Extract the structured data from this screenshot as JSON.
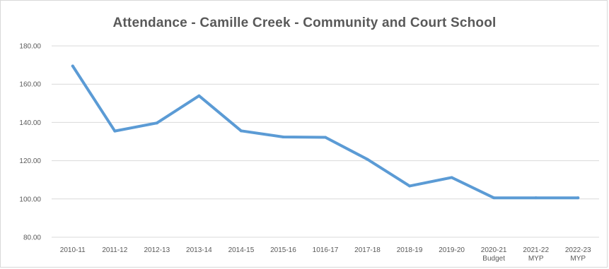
{
  "chart_data": {
    "type": "line",
    "title": "Attendance - Camille Creek - Community and Court School",
    "xlabel": "",
    "ylabel": "",
    "categories": [
      [
        "2010-11"
      ],
      [
        "2011-12"
      ],
      [
        "2012-13"
      ],
      [
        "2013-14"
      ],
      [
        "2014-15"
      ],
      [
        "2015-16"
      ],
      [
        "1016-17"
      ],
      [
        "2017-18"
      ],
      [
        "2018-19"
      ],
      [
        "2019-20"
      ],
      [
        "2020-21",
        "Budget"
      ],
      [
        "2021-22",
        "MYP"
      ],
      [
        "2022-23",
        "MYP"
      ]
    ],
    "series": [
      {
        "values": [
          169.5,
          135.5,
          139.7,
          153.9,
          135.6,
          132.4,
          132.2,
          120.7,
          106.8,
          111.2,
          100.6,
          100.6,
          100.6
        ],
        "color": "#5b9bd5"
      }
    ],
    "ylim": [
      80,
      180
    ],
    "y_ticks": [
      80,
      100,
      120,
      140,
      160,
      180
    ],
    "y_tick_labels": [
      "80.00",
      "100.00",
      "120.00",
      "140.00",
      "160.00",
      "180.00"
    ],
    "grid": true,
    "legend": "none"
  }
}
